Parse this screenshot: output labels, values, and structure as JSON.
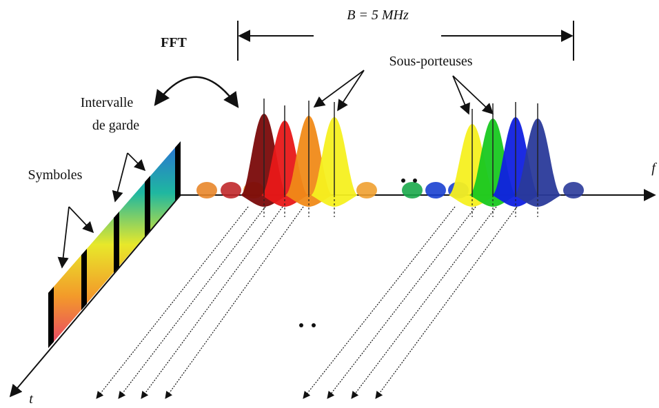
{
  "labels": {
    "bandwidth": "B = 5 MHz",
    "fft": "FFT",
    "subcarriers": "Sous-porteuses",
    "guard_interval": [
      "Intervalle",
      "de garde"
    ],
    "symbols": "Symboles",
    "frequency_axis": "f",
    "time_axis": "t"
  }
}
